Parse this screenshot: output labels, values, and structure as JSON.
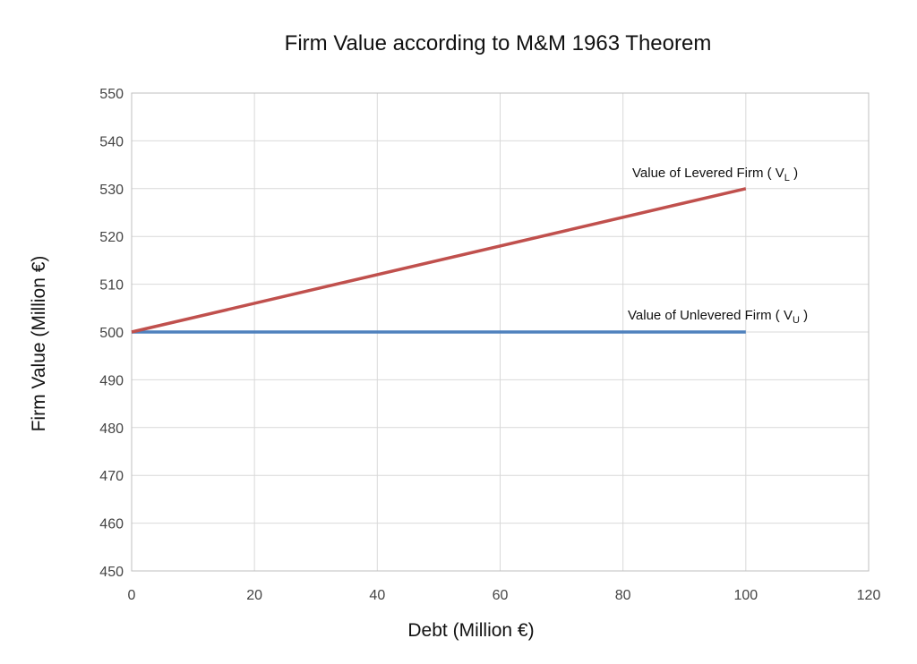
{
  "chart_data": {
    "type": "line",
    "title": "Firm Value according to M&M 1963 Theorem",
    "xlabel": "Debt (Million €)",
    "ylabel": "Firm Value (Million €)",
    "xlim": [
      0,
      120
    ],
    "ylim": [
      450,
      550
    ],
    "x_ticks": [
      "0",
      "20",
      "40",
      "60",
      "80",
      "100",
      "120"
    ],
    "y_ticks": [
      "450",
      "460",
      "470",
      "480",
      "490",
      "500",
      "510",
      "520",
      "530",
      "540",
      "550"
    ],
    "grid": true,
    "legend": "none",
    "series": [
      {
        "name": "Value of Levered Firm ( VL )",
        "color": "#c0504d",
        "x": [
          0,
          100
        ],
        "y": [
          500,
          530
        ]
      },
      {
        "name": "Value of Unlevered Firm ( VU )",
        "color": "#4f81bd",
        "x": [
          0,
          100
        ],
        "y": [
          500,
          500
        ]
      }
    ],
    "annotations": {
      "levered": {
        "main": "Value of Levered Firm ( V",
        "sub": "L",
        "close": " )"
      },
      "unlevered": {
        "main": "Value of Unlevered Firm ( V",
        "sub": "U",
        "close": " )"
      }
    }
  }
}
